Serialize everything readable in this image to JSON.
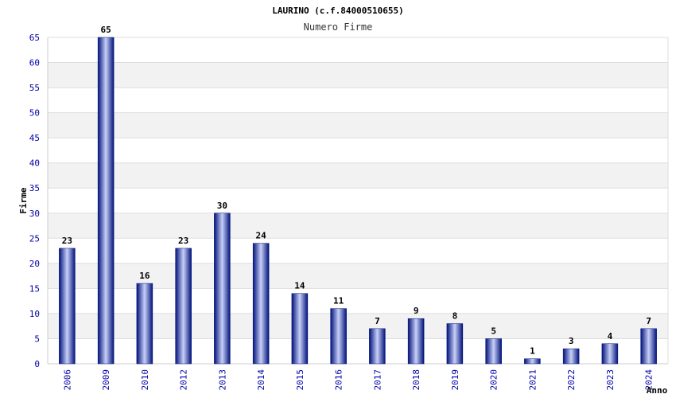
{
  "chart_data": {
    "type": "bar",
    "title": "LAURINO (c.f.84000510655)",
    "subtitle": "Numero Firme",
    "xlabel": "Anno",
    "ylabel": "Firme",
    "categories": [
      "2006",
      "2009",
      "2010",
      "2012",
      "2013",
      "2014",
      "2015",
      "2016",
      "2017",
      "2018",
      "2019",
      "2020",
      "2021",
      "2022",
      "2023",
      "2024"
    ],
    "values": [
      23,
      65,
      16,
      23,
      30,
      24,
      14,
      11,
      7,
      9,
      8,
      5,
      1,
      3,
      4,
      7
    ],
    "ylim": [
      0,
      65
    ],
    "yticks": [
      0,
      5,
      10,
      15,
      20,
      25,
      30,
      35,
      40,
      45,
      50,
      55,
      60,
      65
    ],
    "grid": true,
    "colors": {
      "bar_dark": "#00127a",
      "bar_light": "#c8d0f8",
      "band": "#f2f2f2",
      "gridline": "#dddddd",
      "tick_text": "#0000aa"
    }
  }
}
